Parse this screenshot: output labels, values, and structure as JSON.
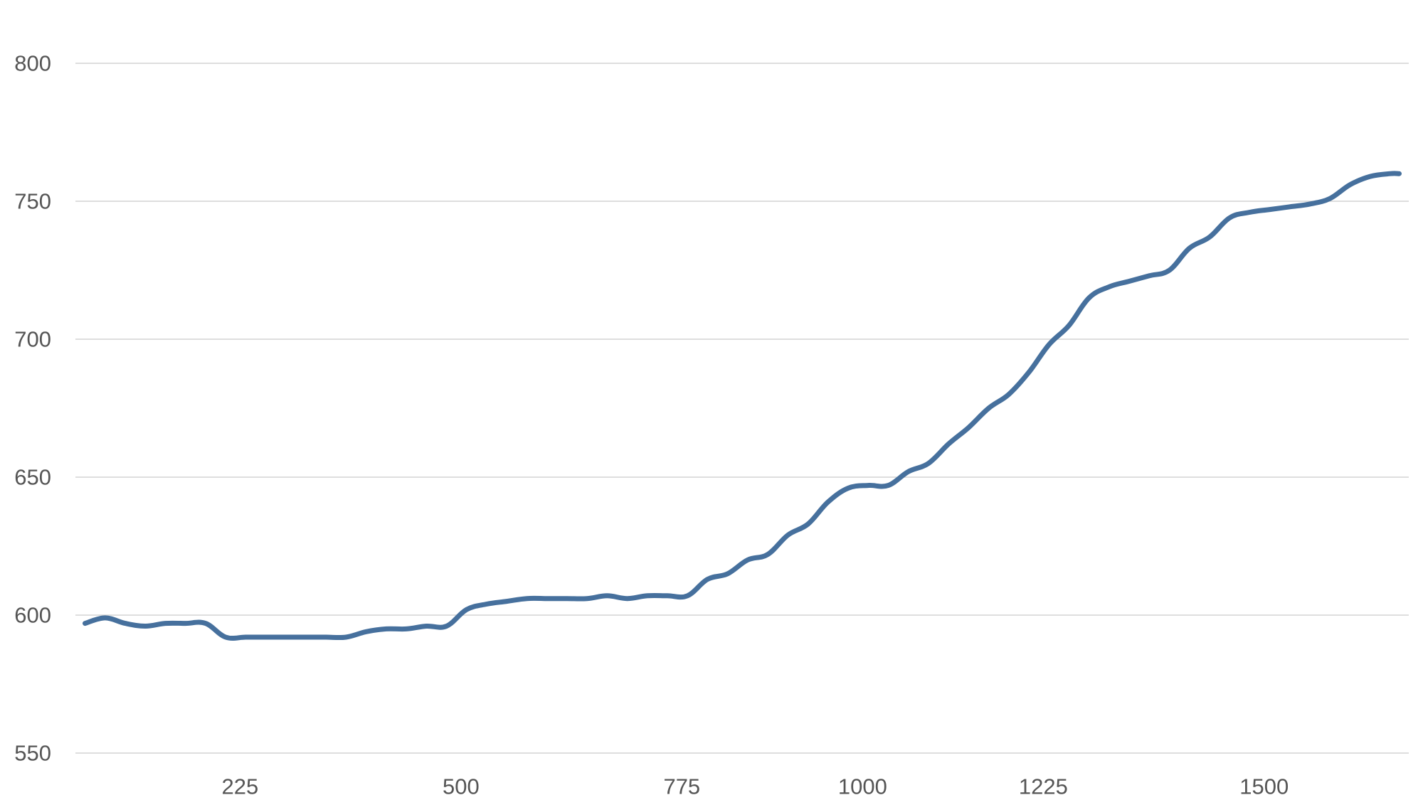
{
  "chart_data": {
    "type": "line",
    "title": "",
    "xlabel": "",
    "ylabel": "",
    "xlim": [
      20,
      1680
    ],
    "ylim": [
      550,
      800
    ],
    "x_ticks": [
      {
        "value": 225,
        "label": "225"
      },
      {
        "value": 500,
        "label": "500"
      },
      {
        "value": 775,
        "label": "775"
      },
      {
        "value": 1000,
        "label": "1000"
      },
      {
        "value": 1225,
        "label": "1225"
      },
      {
        "value": 1500,
        "label": "1500"
      }
    ],
    "y_ticks": [
      {
        "value": 550,
        "label": "550"
      },
      {
        "value": 600,
        "label": "600"
      },
      {
        "value": 650,
        "label": "650"
      },
      {
        "value": 700,
        "label": "700"
      },
      {
        "value": 750,
        "label": "750"
      },
      {
        "value": 800,
        "label": "800"
      }
    ],
    "grid": true,
    "line_color": "#46709d",
    "series": [
      {
        "x": [
          32,
          57,
          82,
          107,
          132,
          157,
          182,
          207,
          232,
          257,
          282,
          307,
          332,
          357,
          382,
          407,
          432,
          457,
          482,
          507,
          532,
          557,
          582,
          607,
          632,
          657,
          682,
          707,
          732,
          757,
          782,
          807,
          832,
          857,
          882,
          907,
          932,
          957,
          982,
          1007,
          1032,
          1057,
          1082,
          1107,
          1132,
          1157,
          1182,
          1207,
          1232,
          1257,
          1282,
          1307,
          1332,
          1357,
          1382,
          1407,
          1432,
          1457,
          1482,
          1507,
          1532,
          1557,
          1582,
          1607,
          1632,
          1657,
          1668
        ],
        "y": [
          597,
          599,
          597,
          596,
          597,
          597,
          597,
          592,
          592,
          592,
          592,
          592,
          592,
          592,
          594,
          595,
          595,
          596,
          596,
          602,
          604,
          605,
          606,
          606,
          606,
          606,
          607,
          606,
          607,
          607,
          607,
          613,
          615,
          620,
          622,
          629,
          633,
          641,
          646,
          647,
          647,
          652,
          655,
          662,
          668,
          675,
          680,
          688,
          698,
          705,
          715,
          719,
          721,
          723,
          725,
          733,
          737,
          744,
          746,
          747,
          748,
          749,
          751,
          756,
          759,
          760,
          760
        ]
      }
    ]
  }
}
